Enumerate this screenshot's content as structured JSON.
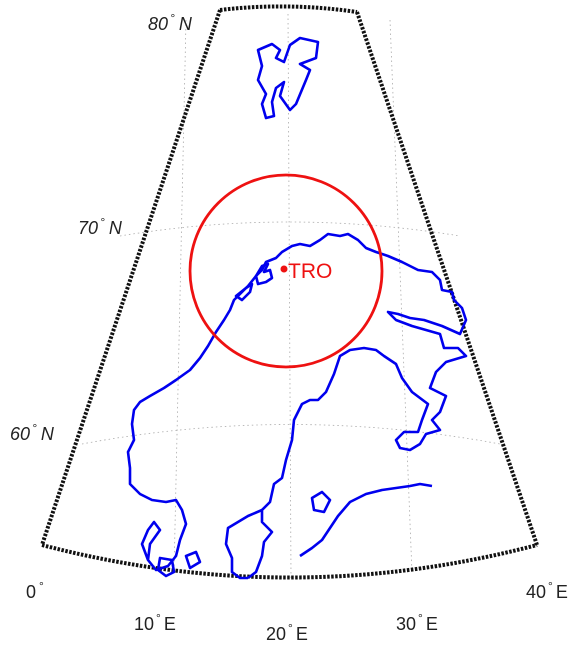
{
  "map": {
    "projection": "conic (polar stereographic-like) over Scandinavia",
    "lat_range": [
      55,
      80
    ],
    "lon_range": [
      0,
      40
    ],
    "graticule": "dotted grey",
    "frame": "thick black dotted",
    "lat_labels": [
      {
        "deg": "80",
        "unit": "N"
      },
      {
        "deg": "70",
        "unit": "N"
      },
      {
        "deg": "60",
        "unit": "N"
      }
    ],
    "lon_labels": [
      {
        "deg": "0",
        "unit": ""
      },
      {
        "deg": "10",
        "unit": "E"
      },
      {
        "deg": "20",
        "unit": "E"
      },
      {
        "deg": "30",
        "unit": "E"
      },
      {
        "deg": "40",
        "unit": "E"
      }
    ],
    "coastline_color": "#0000ee",
    "station": {
      "name": "TRO",
      "color": "#ee1111",
      "coverage_circle": true
    }
  }
}
